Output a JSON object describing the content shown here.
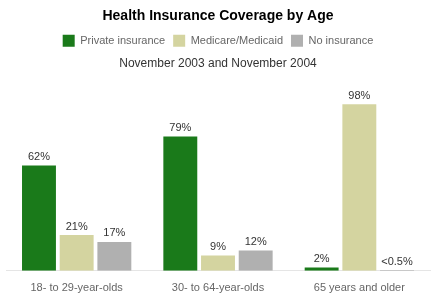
{
  "chart_data": {
    "type": "bar",
    "title": "Health Insurance Coverage by Age",
    "subtitle": "November 2003 and November 2004",
    "categories": [
      "18- to 29-year-olds",
      "30- to 64-year-olds",
      "65 years and older"
    ],
    "series": [
      {
        "name": "Private insurance",
        "color": "#1a7a1a",
        "values": [
          62,
          79,
          2
        ],
        "value_labels": [
          "62%",
          "79%",
          "2%"
        ]
      },
      {
        "name": "Medicare/Medicaid",
        "color": "#d4d4a0",
        "values": [
          21,
          9,
          98
        ],
        "value_labels": [
          "21%",
          "9%",
          "98%"
        ]
      },
      {
        "name": "No insurance",
        "color": "#b0b0b0",
        "values": [
          17,
          12,
          0.4
        ],
        "value_labels": [
          "17%",
          "12%",
          "<0.5%"
        ]
      }
    ],
    "ylim": [
      0,
      108
    ],
    "grid": false,
    "legend": "top",
    "data_labels": true,
    "tick_labels": "x"
  }
}
